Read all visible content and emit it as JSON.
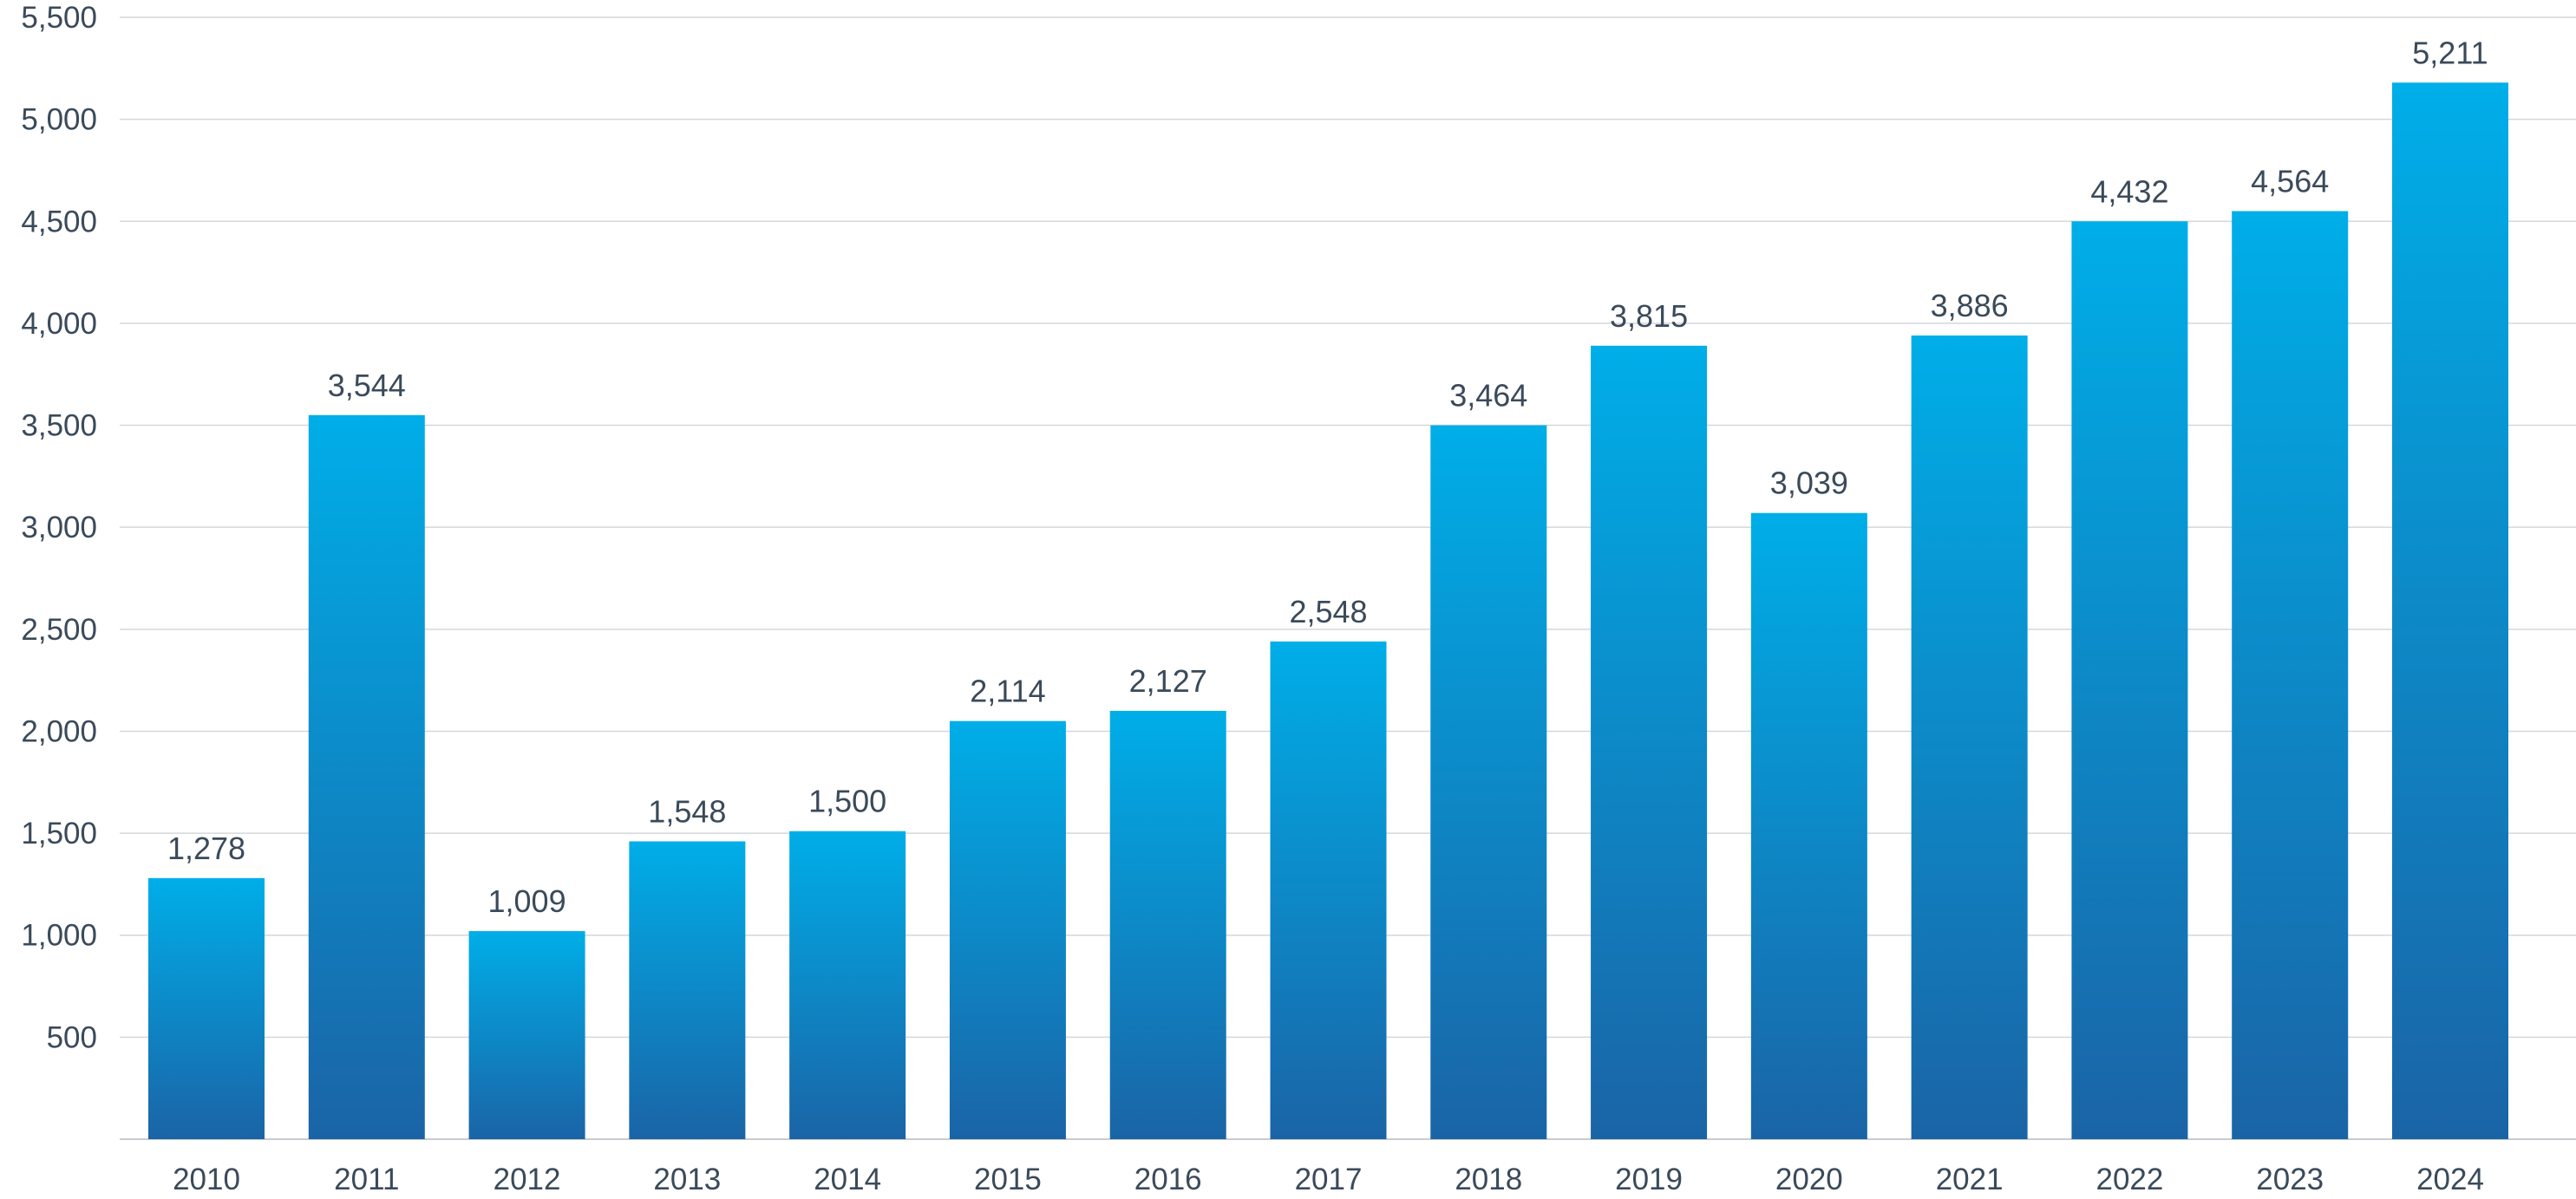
{
  "chart_data": {
    "type": "bar",
    "title": "",
    "xlabel": "",
    "ylabel": "",
    "categories": [
      "2010",
      "2011",
      "2012",
      "2013",
      "2014",
      "2015",
      "2016",
      "2017",
      "2018",
      "2019",
      "2020",
      "2021",
      "2022",
      "2023",
      "2024"
    ],
    "values": [
      1278,
      3544,
      1009,
      1548,
      1500,
      2114,
      2127,
      2548,
      3464,
      3815,
      3039,
      3886,
      4432,
      4564,
      5211
    ],
    "value_labels": [
      "1,278",
      "3,544",
      "1,009",
      "1,548",
      "1,500",
      "2,114",
      "2,127",
      "2,548",
      "3,464",
      "3,815",
      "3,039",
      "3,886",
      "4,432",
      "4,564",
      "5,211"
    ],
    "bar_heights_shown": [
      1280,
      3550,
      1020,
      1460,
      1510,
      2050,
      2100,
      2440,
      3500,
      3890,
      3070,
      3940,
      4500,
      4550,
      5180
    ],
    "ylim": [
      0,
      5500
    ],
    "yticks": [
      500,
      1000,
      1500,
      2000,
      2500,
      3000,
      3500,
      4000,
      4500,
      5000,
      5500
    ],
    "ytick_labels": [
      "500",
      "1,000",
      "1,500",
      "2,000",
      "2,500",
      "3,000",
      "3,500",
      "4,000",
      "4,500",
      "5,000",
      "5,500"
    ],
    "grid": true,
    "legend": "none",
    "colors": {
      "bar_top": "#00aee8",
      "bar_bottom": "#1a64a6",
      "grid": "#d4d7db",
      "text": "#3a4a5a"
    }
  }
}
